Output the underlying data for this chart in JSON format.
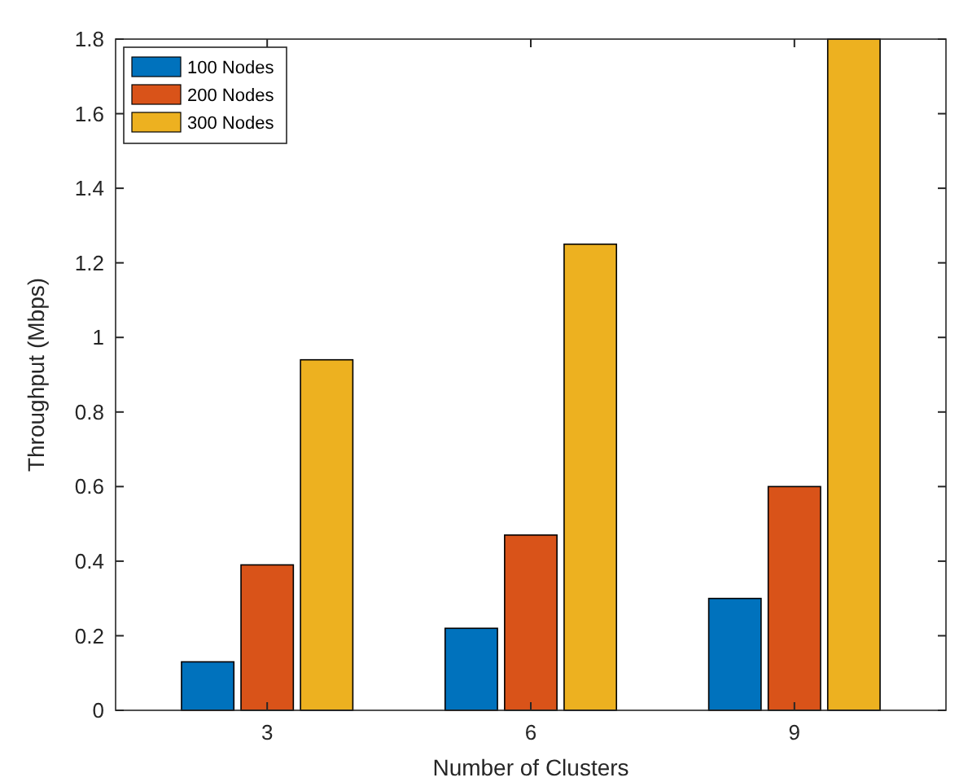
{
  "chart_data": {
    "type": "bar",
    "xlabel": "Number of Clusters",
    "ylabel": "Throughput (Mbps)",
    "categories": [
      "3",
      "6",
      "9"
    ],
    "series": [
      {
        "name": "100 Nodes",
        "color": "#0072bd",
        "values": [
          0.13,
          0.22,
          0.3
        ]
      },
      {
        "name": "200 Nodes",
        "color": "#d95319",
        "values": [
          0.39,
          0.47,
          0.6
        ]
      },
      {
        "name": "300 Nodes",
        "color": "#edb120",
        "values": [
          0.94,
          1.25,
          1.8
        ]
      }
    ],
    "ylim": [
      0,
      1.8
    ],
    "yticks": [
      0,
      0.2,
      0.4,
      0.6,
      0.8,
      1,
      1.2,
      1.4,
      1.6,
      1.8
    ],
    "grid": false,
    "legend": "top left"
  }
}
